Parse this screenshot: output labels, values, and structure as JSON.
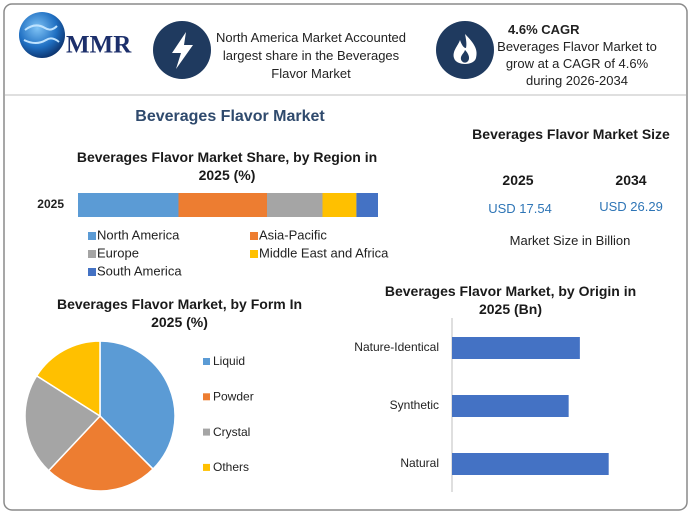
{
  "header": {
    "logo": "MMR",
    "highlight_1": {
      "text": "North America Market Accounted largest share in the Beverages Flavor Market"
    },
    "highlight_2": {
      "title": "4.6% CAGR",
      "text": "Beverages Flavor Market to grow at a CAGR of 4.6% during 2026-2034"
    }
  },
  "title": "Beverages Flavor Market",
  "market_size": {
    "title": "Beverages Flavor Market Size",
    "years": [
      "2025",
      "2034"
    ],
    "values": [
      "USD 17.54",
      "USD 26.29"
    ],
    "note": "Market Size in Billion"
  },
  "chart_data": [
    {
      "type": "stacked_bar",
      "orientation": "horizontal",
      "title": "Beverages Flavor Market Share, by Region in 2025 (%)",
      "categories": [
        "2025"
      ],
      "xlim": [
        0,
        100
      ],
      "legend": "bottom",
      "series": [
        {
          "name": "North America",
          "color": "#5b9bd5",
          "values": [
            33.5
          ]
        },
        {
          "name": "Asia-Pacific",
          "color": "#ed7d31",
          "values": [
            29.5
          ]
        },
        {
          "name": "Europe",
          "color": "#a5a5a5",
          "values": [
            18.5
          ]
        },
        {
          "name": "Middle East and Africa",
          "color": "#ffc000",
          "values": [
            11.3
          ]
        },
        {
          "name": "South America",
          "color": "#4472c4",
          "values": [
            7.2
          ]
        }
      ]
    },
    {
      "type": "pie",
      "title": "Beverages Flavor Market, by Form In 2025 (%)",
      "legend": "right",
      "categories": [
        "Liquid",
        "Powder",
        "Crystal",
        "Others"
      ],
      "values": [
        37.5,
        24.5,
        22,
        16
      ],
      "colors": [
        "#5b9bd5",
        "#ed7d31",
        "#a5a5a5",
        "#ffc000"
      ]
    },
    {
      "type": "bar",
      "orientation": "horizontal",
      "title": "Beverages Flavor Market, by Origin in 2025 (Bn)",
      "categories": [
        "Nature-Identical",
        "Synthetic",
        "Natural"
      ],
      "values": [
        5.59,
        5.1,
        6.85
      ],
      "color": "#4472c4",
      "xlim": [
        0,
        8
      ]
    }
  ]
}
